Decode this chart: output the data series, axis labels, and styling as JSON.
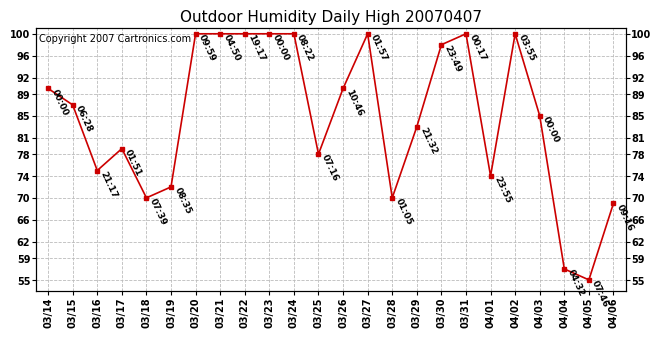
{
  "title": "Outdoor Humidity Daily High 20070407",
  "copyright": "Copyright 2007 Cartronics.com",
  "dates": [
    "03/14",
    "03/15",
    "03/16",
    "03/17",
    "03/18",
    "03/19",
    "03/20",
    "03/21",
    "03/22",
    "03/23",
    "03/24",
    "03/25",
    "03/26",
    "03/27",
    "03/28",
    "03/29",
    "03/30",
    "03/31",
    "04/01",
    "04/02",
    "04/03",
    "04/04",
    "04/05",
    "04/06"
  ],
  "values": [
    90,
    87,
    75,
    79,
    70,
    72,
    100,
    100,
    100,
    100,
    100,
    78,
    90,
    100,
    70,
    83,
    98,
    100,
    74,
    100,
    85,
    57,
    55,
    69
  ],
  "times": [
    "00:00",
    "06:28",
    "21:17",
    "01:51",
    "07:39",
    "08:35",
    "09:59",
    "04:50",
    "19:17",
    "00:00",
    "08:22",
    "07:16",
    "10:46",
    "01:57",
    "01:05",
    "21:32",
    "23:49",
    "00:17",
    "23:55",
    "03:55",
    "00:00",
    "04:32",
    "07:46",
    "09:16"
  ],
  "line_color": "#cc0000",
  "marker_color": "#cc0000",
  "bg_color": "#ffffff",
  "grid_color": "#bbbbbb",
  "ylim_min": 53,
  "ylim_max": 101,
  "yticks": [
    55,
    59,
    62,
    66,
    70,
    74,
    78,
    81,
    85,
    89,
    92,
    96,
    100
  ],
  "title_fontsize": 11,
  "tick_fontsize": 7,
  "copyright_fontsize": 7,
  "time_label_fontsize": 6.5
}
